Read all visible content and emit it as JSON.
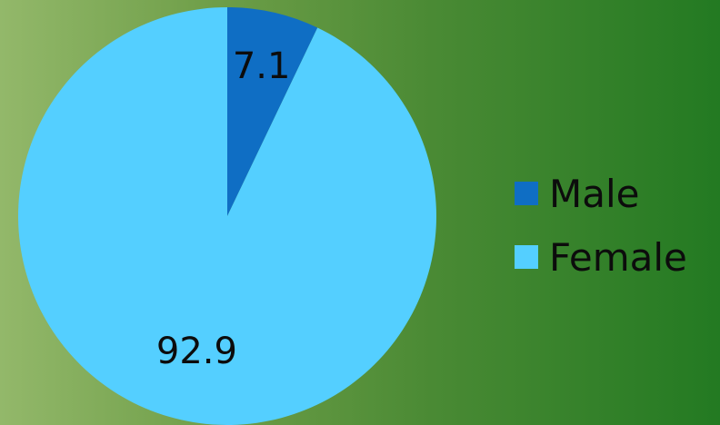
{
  "chart_data": {
    "type": "pie",
    "title": "",
    "categories": [
      "Male",
      "Female"
    ],
    "values": [
      7.1,
      92.9
    ],
    "data_labels": [
      "7.1",
      "92.9"
    ],
    "colors": [
      "#0f6ec4",
      "#54cfff"
    ],
    "start_angle": "12 o'clock",
    "direction": "clockwise",
    "legend_position": "right"
  }
}
